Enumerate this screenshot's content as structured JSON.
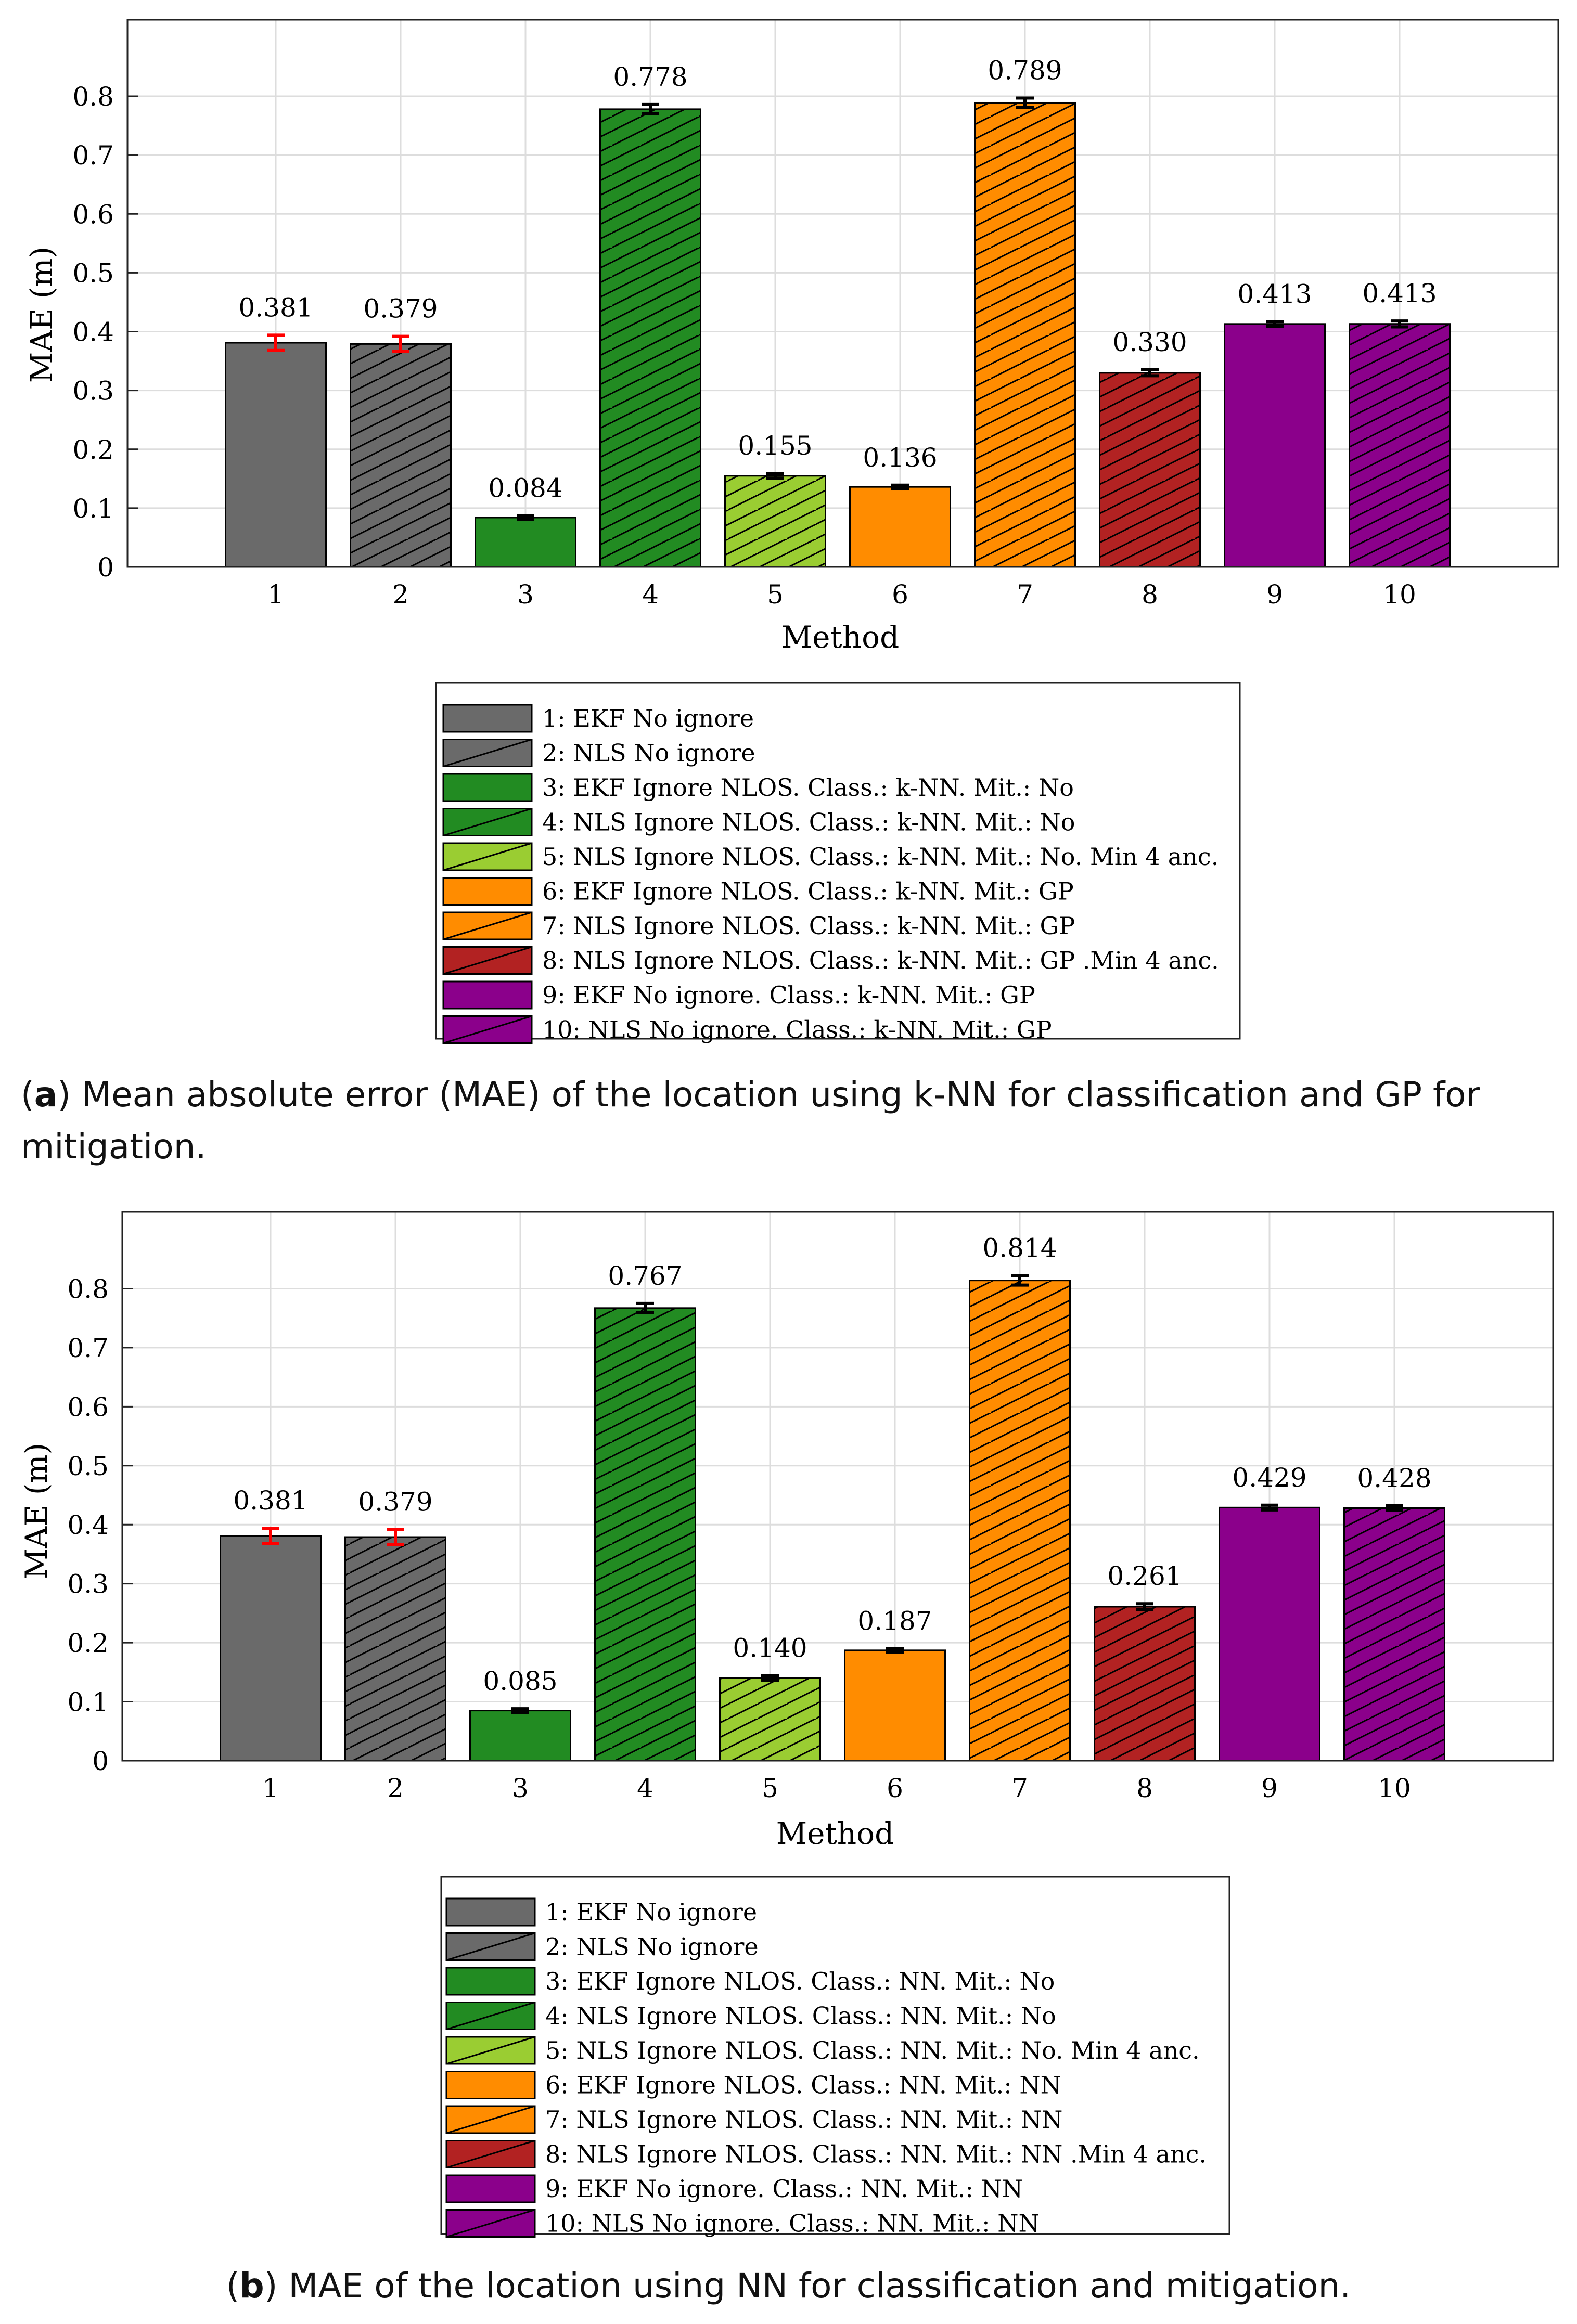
{
  "colors": {
    "gray": "#6a6a6a",
    "green": "#228b22",
    "lightgreen": "#9acd32",
    "orange": "#ff8c00",
    "red": "#b22222",
    "purple": "#8b008b",
    "errorbar_red": "#ff0000",
    "errorbar_black": "#000000"
  },
  "chart_data": [
    {
      "type": "bar",
      "panel": "a",
      "xlabel": "Method",
      "ylabel": "MAE (m)",
      "ylim": [
        0,
        0.93
      ],
      "yticks": [
        "0",
        "0.1",
        "0.2",
        "0.3",
        "0.4",
        "0.5",
        "0.6",
        "0.7",
        "0.8"
      ],
      "categories": [
        "1",
        "2",
        "3",
        "4",
        "5",
        "6",
        "7",
        "8",
        "9",
        "10"
      ],
      "values": [
        0.381,
        0.379,
        0.084,
        0.778,
        0.155,
        0.136,
        0.789,
        0.33,
        0.413,
        0.413
      ],
      "value_labels": [
        "0.381",
        "0.379",
        "0.084",
        "0.778",
        "0.155",
        "0.136",
        "0.789",
        "0.330",
        "0.413",
        "0.413"
      ],
      "errors": [
        0.013,
        0.013,
        0.003,
        0.008,
        0.004,
        0.003,
        0.008,
        0.005,
        0.004,
        0.005
      ],
      "error_colors": [
        "errorbar_red",
        "errorbar_red",
        "errorbar_black",
        "errorbar_black",
        "errorbar_black",
        "errorbar_black",
        "errorbar_black",
        "errorbar_black",
        "errorbar_black",
        "errorbar_black"
      ],
      "bar_colors": [
        "gray",
        "gray",
        "green",
        "green",
        "lightgreen",
        "orange",
        "orange",
        "red",
        "purple",
        "purple"
      ],
      "hatched": [
        false,
        true,
        false,
        true,
        true,
        false,
        true,
        true,
        false,
        true
      ],
      "legend": [
        "1: EKF No ignore",
        "2: NLS No ignore",
        "3: EKF Ignore NLOS. Class.: k-NN. Mit.: No",
        "4: NLS Ignore NLOS. Class.: k-NN. Mit.: No",
        "5: NLS Ignore NLOS. Class.: k-NN. Mit.: No. Min 4 anc.",
        "6: EKF Ignore NLOS. Class.: k-NN. Mit.: GP",
        "7: NLS Ignore NLOS. Class.: k-NN. Mit.: GP",
        "8: NLS Ignore NLOS. Class.: k-NN. Mit.: GP .Min 4 anc.",
        "9: EKF No ignore. Class.: k-NN. Mit.: GP",
        "10: NLS No ignore. Class.: k-NN. Mit.: GP"
      ]
    },
    {
      "type": "bar",
      "panel": "b",
      "xlabel": "Method",
      "ylabel": "MAE (m)",
      "ylim": [
        0,
        0.93
      ],
      "yticks": [
        "0",
        "0.1",
        "0.2",
        "0.3",
        "0.4",
        "0.5",
        "0.6",
        "0.7",
        "0.8"
      ],
      "categories": [
        "1",
        "2",
        "3",
        "4",
        "5",
        "6",
        "7",
        "8",
        "9",
        "10"
      ],
      "values": [
        0.381,
        0.379,
        0.085,
        0.767,
        0.14,
        0.187,
        0.814,
        0.261,
        0.429,
        0.428
      ],
      "value_labels": [
        "0.381",
        "0.379",
        "0.085",
        "0.767",
        "0.140",
        "0.187",
        "0.814",
        "0.261",
        "0.429",
        "0.428"
      ],
      "errors": [
        0.013,
        0.013,
        0.003,
        0.008,
        0.004,
        0.003,
        0.008,
        0.005,
        0.004,
        0.004
      ],
      "error_colors": [
        "errorbar_red",
        "errorbar_red",
        "errorbar_black",
        "errorbar_black",
        "errorbar_black",
        "errorbar_black",
        "errorbar_black",
        "errorbar_black",
        "errorbar_black",
        "errorbar_black"
      ],
      "bar_colors": [
        "gray",
        "gray",
        "green",
        "green",
        "lightgreen",
        "orange",
        "orange",
        "red",
        "purple",
        "purple"
      ],
      "hatched": [
        false,
        true,
        false,
        true,
        true,
        false,
        true,
        true,
        false,
        true
      ],
      "legend": [
        "1: EKF No ignore",
        "2: NLS No ignore",
        "3: EKF Ignore NLOS. Class.: NN. Mit.: No",
        "4: NLS Ignore NLOS. Class.: NN. Mit.: No",
        "5: NLS Ignore NLOS. Class.: NN. Mit.: No. Min 4 anc.",
        "6: EKF Ignore NLOS. Class.: NN. Mit.: NN",
        "7: NLS Ignore NLOS. Class.: NN. Mit.: NN",
        "8: NLS Ignore NLOS. Class.: NN. Mit.: NN .Min 4 anc.",
        "9: EKF No ignore. Class.: NN. Mit.: NN",
        "10: NLS No ignore. Class.: NN. Mit.: NN"
      ]
    }
  ],
  "captions": {
    "a_label": "a",
    "a_text": " Mean absolute error (MAE) of the location using k-NN for classification and GP for mitigation.",
    "b_label": "b",
    "b_text": " MAE of the location using NN for classification and mitigation."
  }
}
